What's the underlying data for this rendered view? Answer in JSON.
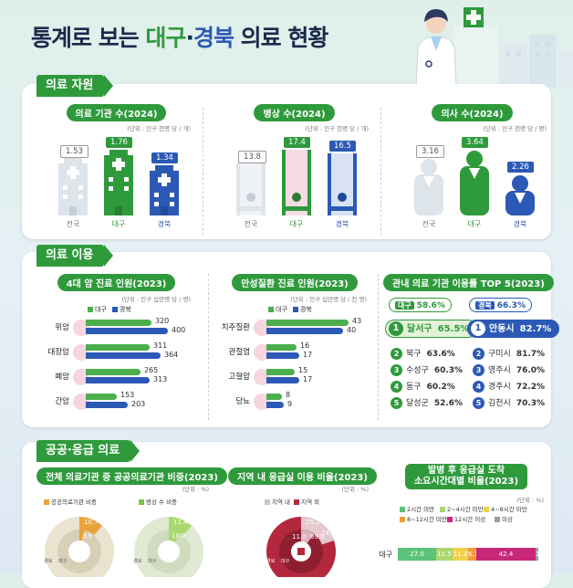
{
  "title": {
    "part1": "통계로 보는 ",
    "daegu": "대구",
    "dot": "·",
    "gyeongbuk": "경북",
    "part2": " 의료 현황"
  },
  "colors": {
    "green": "#2f9a3c",
    "blue": "#2b59b5",
    "nation": "#eef2f6"
  },
  "sections": {
    "s1": "의료 자원",
    "s2": "의료 이용",
    "s3": "공공·응급 의료"
  },
  "resources": [
    {
      "title": "의료 기관 수(2024)",
      "unit": "(단위 : 인구 천명 당 / 개)",
      "icon": "hospital-icon",
      "values": [
        "1.53",
        "1.76",
        "1.34"
      ],
      "labels": [
        "전국",
        "대구",
        "경북"
      ]
    },
    {
      "title": "병상 수(2024)",
      "unit": "(단위 : 인구 천명 당 / 개)",
      "icon": "bed-icon",
      "values": [
        "13.8",
        "17.4",
        "16.5"
      ],
      "labels": [
        "전국",
        "대구",
        "경북"
      ]
    },
    {
      "title": "의사 수(2024)",
      "unit": "(단위 : 인구 천명 당 / 명)",
      "icon": "doctor-icon",
      "values": [
        "3.16",
        "3.64",
        "2.26"
      ],
      "labels": [
        "전국",
        "대구",
        "경북"
      ]
    }
  ],
  "cancer": {
    "title": "4대 암 진료 인원(2023)",
    "unit": "(단위 : 인구 십만명 당 / 명)",
    "legend": [
      "대구",
      "경북"
    ],
    "rows": [
      {
        "label": "위암",
        "d": "320",
        "g": "400",
        "dv": 320,
        "gv": 400
      },
      {
        "label": "대장암",
        "d": "311",
        "g": "364",
        "dv": 311,
        "gv": 364
      },
      {
        "label": "폐암",
        "d": "265",
        "g": "313",
        "dv": 265,
        "gv": 313
      },
      {
        "label": "간암",
        "d": "153",
        "g": "203",
        "dv": 153,
        "gv": 203
      }
    ]
  },
  "chronic": {
    "title": "만성질환 진료 인원(2023)",
    "unit": "(단위 : 인구 십만명 당 / 천 명)",
    "legend": [
      "대구",
      "경북"
    ],
    "rows": [
      {
        "label": "치주질환",
        "d": "43",
        "g": "40",
        "dv": 43,
        "gv": 40
      },
      {
        "label": "관절염",
        "d": "16",
        "g": "17",
        "dv": 16,
        "gv": 17
      },
      {
        "label": "고혈압",
        "d": "15",
        "g": "17",
        "dv": 15,
        "gv": 17
      },
      {
        "label": "당뇨",
        "d": "8",
        "g": "9",
        "dv": 8,
        "gv": 9
      }
    ]
  },
  "top5": {
    "title": "관내 의료 기관 이용률 TOP 5(2023)",
    "daegu": {
      "label": "대구",
      "total": "58.6%",
      "items": [
        [
          "1",
          "달서구",
          "65.5%"
        ],
        [
          "2",
          "북구",
          "63.6%"
        ],
        [
          "3",
          "수성구",
          "60.3%"
        ],
        [
          "4",
          "동구",
          "60.2%"
        ],
        [
          "5",
          "달성군",
          "52.6%"
        ]
      ]
    },
    "gyeongbuk": {
      "label": "경북",
      "total": "66.3%",
      "items": [
        [
          "1",
          "안동시",
          "82.7%"
        ],
        [
          "2",
          "구미시",
          "81.7%"
        ],
        [
          "3",
          "영주시",
          "76.0%"
        ],
        [
          "4",
          "경주시",
          "72.2%"
        ],
        [
          "5",
          "김천시",
          "70.3%"
        ]
      ]
    }
  },
  "public": {
    "title": "전체 의료기관 중 공공의료기관 비중(2023)",
    "unit": "(단위 : %)",
    "legend1": "공공의료기관 비중",
    "legend2": "병상 수 비중",
    "v1": [
      "10.7",
      "3.9"
    ],
    "v2": [
      "11.4",
      "10.0"
    ],
    "ring_labels": [
      "경북",
      "대구"
    ]
  },
  "emergency": {
    "title": "지역 내 응급실 이용 비율(2023)",
    "unit": "(단위 : %)",
    "legend": [
      "지역 내",
      "지역 외"
    ],
    "outer": [
      "25.2",
      "74.8"
    ],
    "inner": [
      "11.0",
      "89.0"
    ],
    "ring_labels": [
      "경북",
      "대구"
    ]
  },
  "arrival": {
    "title1": "발병 후 응급실 도착",
    "title2": "소요시간대별 비율(2023)",
    "unit": "(단위 : %)",
    "legend": [
      "2시간 미만",
      "2~4시간 미만",
      "4~8시간 미만",
      "8~12시간 미만",
      "12시간 이상",
      "미상"
    ],
    "legend_colors": [
      "#5cc27a",
      "#a9d86e",
      "#f1d34a",
      "#f29b3a",
      "#c8287a",
      "#9e9e9e"
    ],
    "row_label": "대구",
    "values": [
      "27.0",
      "11.5",
      "11.2",
      "6.1",
      "42.4",
      "1.8"
    ],
    "nums": [
      27.0,
      11.5,
      11.2,
      6.1,
      42.4,
      1.8
    ]
  }
}
